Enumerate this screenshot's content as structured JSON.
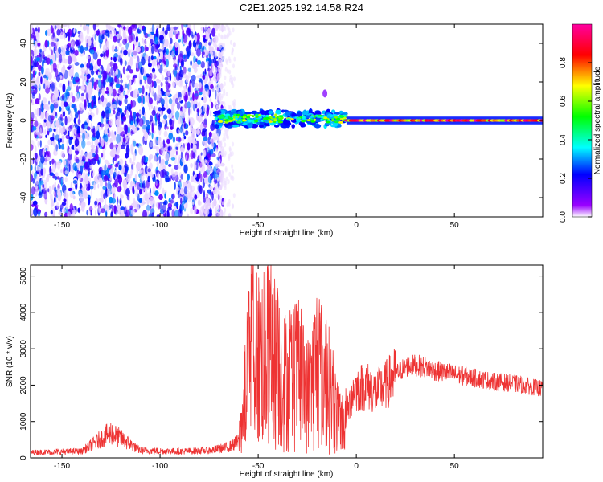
{
  "title": "C2E1.2025.192.14.58.R24",
  "chart_data": [
    {
      "type": "heatmap",
      "xlabel": "Height of straight line (km)",
      "ylabel": "Frequency (Hz)",
      "xlim": [
        -166,
        95
      ],
      "ylim": [
        -50,
        50
      ],
      "x_ticks": [
        -150,
        -100,
        -50,
        0,
        50
      ],
      "y_ticks": [
        -40,
        -20,
        0,
        20,
        40
      ],
      "colorbar": {
        "label": "Normalized spectral amplitude",
        "range": [
          0,
          1
        ],
        "ticks": [
          0.0,
          0.2,
          0.4,
          0.6,
          0.8
        ],
        "colormap": [
          "#ffffff",
          "#9a00ff",
          "#0000ff",
          "#00ffff",
          "#00ff00",
          "#ffff00",
          "#ff0000",
          "#ff00a0"
        ]
      },
      "regions": [
        {
          "x_range": [
            -166,
            -72
          ],
          "description": "broadband noise",
          "amplitude": [
            0.1,
            0.3
          ]
        },
        {
          "x_range": [
            -72,
            -5
          ],
          "freq_center": 1,
          "freq_halfwidth": 4,
          "amplitude": [
            0.3,
            0.7
          ]
        },
        {
          "x_range": [
            -5,
            95
          ],
          "freq_center": 0,
          "freq_halfwidth": 2,
          "amplitude": [
            0.6,
            1.0
          ]
        }
      ]
    },
    {
      "type": "line",
      "xlabel": "Height of straight line (km)",
      "ylabel": "SNR (10 * v/v)",
      "xlim": [
        -166,
        95
      ],
      "ylim": [
        0,
        5300
      ],
      "x_ticks": [
        -150,
        -100,
        -50,
        0,
        50
      ],
      "y_ticks": [
        0,
        1000,
        2000,
        3000,
        4000,
        5000
      ],
      "color": "#ee3333",
      "x": [
        -166,
        -140,
        -125,
        -110,
        -90,
        -75,
        -65,
        -60,
        -57,
        -53,
        -50,
        -45,
        -40,
        -35,
        -30,
        -25,
        -20,
        -14,
        -10,
        -6,
        -2,
        0,
        5,
        10,
        15,
        20,
        25,
        30,
        35,
        40,
        50,
        60,
        70,
        80,
        90,
        95
      ],
      "values": [
        150,
        180,
        700,
        200,
        180,
        200,
        300,
        450,
        1500,
        3500,
        2700,
        3000,
        2500,
        2000,
        2300,
        1700,
        2600,
        1900,
        1200,
        900,
        1800,
        1900,
        2000,
        1800,
        2000,
        2300,
        2500,
        2550,
        2500,
        2400,
        2300,
        2200,
        2100,
        2050,
        1950,
        1900
      ]
    }
  ]
}
